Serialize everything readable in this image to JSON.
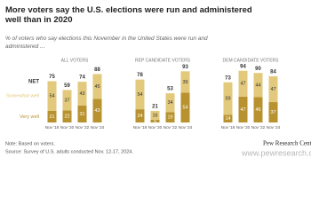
{
  "title": "More voters say the U.S. elections were run and administered well than in 2020",
  "subtitle": "% of voters who say elections this November in the United States were run and administered ...",
  "note": "Note: Based on voters.",
  "source": "Source: Survey of U.S. adults conducted Nov. 12-17, 2024.",
  "brand": "Pew Research Center",
  "watermark": "www.pewresearch.org",
  "net_label": "NET",
  "legend": [
    {
      "name": "Somewhat well",
      "color": "#e2c97c"
    },
    {
      "name": "Very well",
      "color": "#b8922e"
    }
  ],
  "chart_data": [
    {
      "type": "stacked_bar",
      "title": "ALL VOTERS",
      "categories": [
        "Nov '18",
        "Nov '20",
        "Nov '22",
        "Nov '24"
      ],
      "net_values": [
        75,
        59,
        74,
        88
      ],
      "series": [
        {
          "values": [
            54,
            37,
            43,
            45
          ]
        },
        {
          "values": [
            21,
            22,
            31,
            43
          ]
        }
      ]
    },
    {
      "type": "stacked_bar",
      "title": "REP CANDIDATE VOTERS",
      "categories": [
        "Nov '18",
        "Nov '20",
        "Nov '22",
        "Nov '24"
      ],
      "net_values": [
        78,
        21,
        53,
        93
      ],
      "series": [
        {
          "values": [
            54,
            16,
            34,
            39
          ]
        },
        {
          "values": [
            24,
            5,
            19,
            54
          ]
        }
      ]
    },
    {
      "type": "stacked_bar",
      "title": "DEM CANDIDATE VOTERS",
      "categories": [
        "Nov '18",
        "Nov '20",
        "Nov '22",
        "Nov '24"
      ],
      "net_values": [
        73,
        94,
        90,
        84
      ],
      "series": [
        {
          "values": [
            59,
            47,
            44,
            47
          ]
        },
        {
          "values": [
            14,
            47,
            46,
            37
          ]
        }
      ]
    }
  ]
}
